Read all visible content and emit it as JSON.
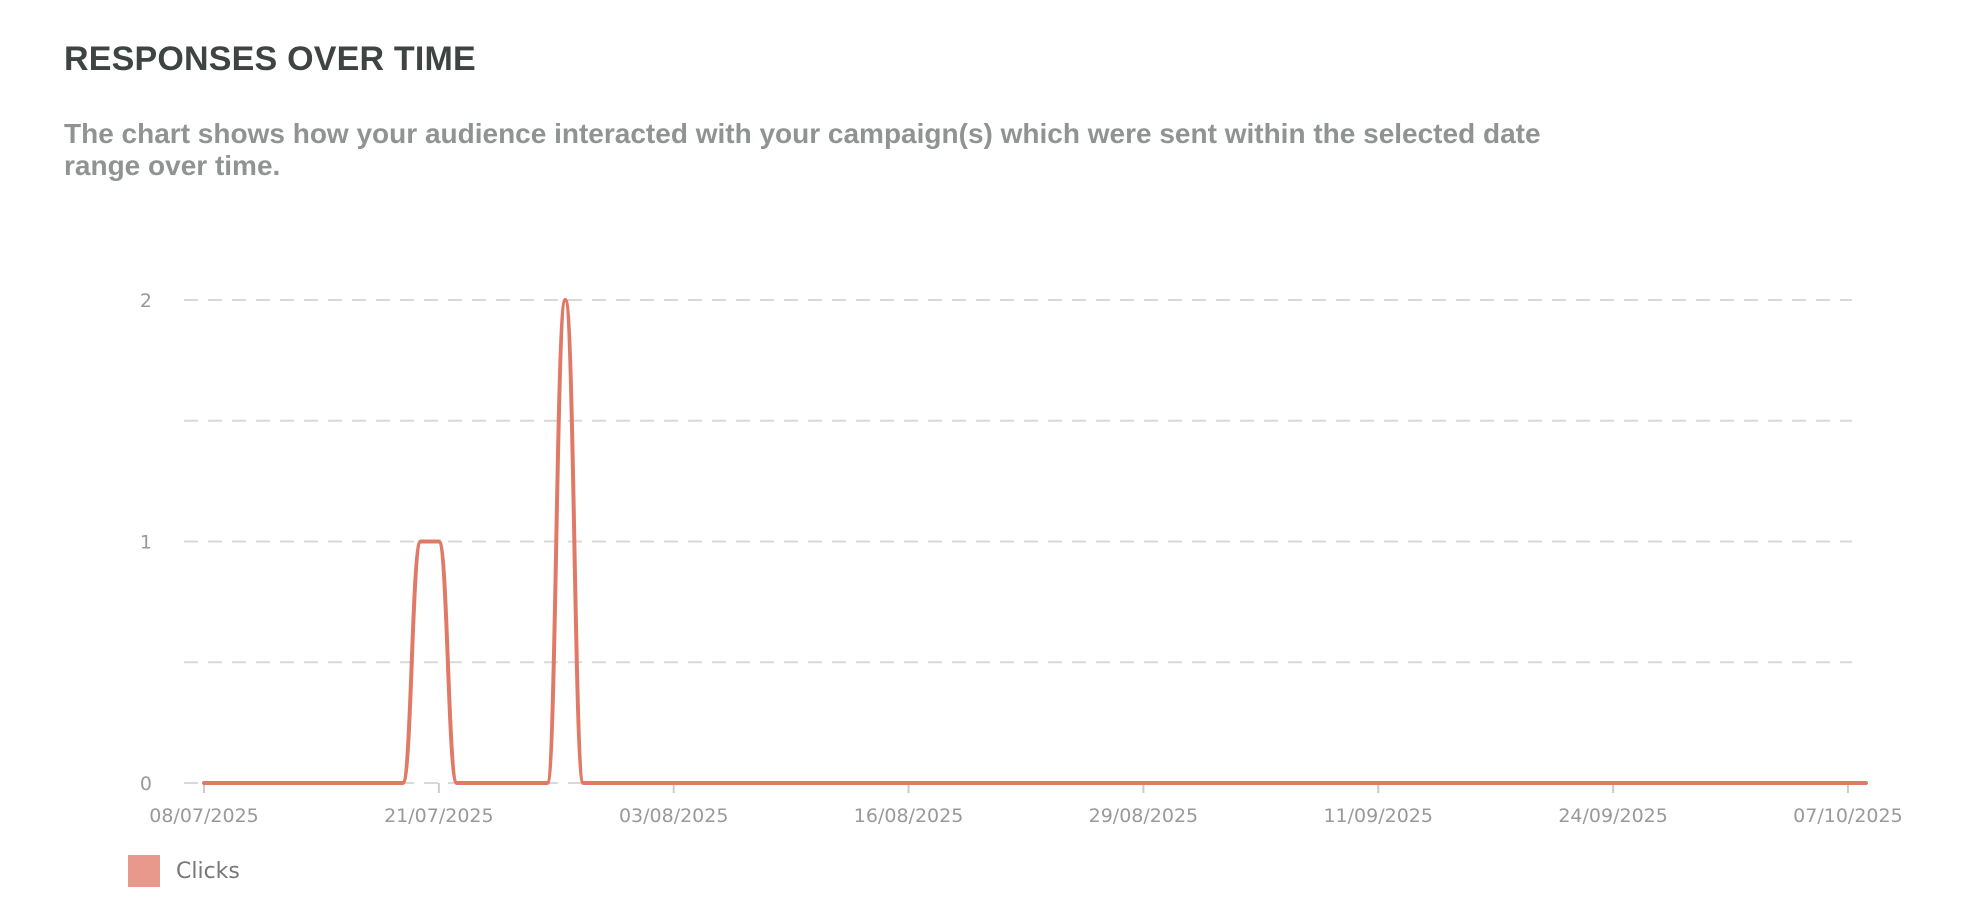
{
  "header": {
    "title": "RESPONSES OVER TIME",
    "description": "The chart shows how your audience interacted with your campaign(s) which were sent within the selected date range over time."
  },
  "chart_data": {
    "type": "line",
    "title": "RESPONSES OVER TIME",
    "xlabel": "",
    "ylabel": "",
    "x_axis_type": "date",
    "x_ticks": [
      "08/07/2025",
      "21/07/2025",
      "03/08/2025",
      "16/08/2025",
      "29/08/2025",
      "11/09/2025",
      "24/09/2025",
      "07/10/2025"
    ],
    "x_range": [
      "08/07/2025",
      "08/10/2025"
    ],
    "ylim": [
      0,
      2
    ],
    "y_ticks": [
      0,
      1,
      2
    ],
    "grid": true,
    "legend": "bottom-left",
    "series": [
      {
        "name": "Clicks",
        "color": "#e07a66",
        "x": [
          "08/07/2025",
          "19/07/2025",
          "20/07/2025",
          "21/07/2025",
          "22/07/2025",
          "27/07/2025",
          "28/07/2025",
          "29/07/2025",
          "08/10/2025"
        ],
        "values": [
          0,
          0,
          1,
          1,
          0,
          0,
          2,
          0,
          0
        ]
      }
    ]
  },
  "legend": {
    "items": [
      {
        "label": "Clicks",
        "color": "#e8998b"
      }
    ]
  }
}
